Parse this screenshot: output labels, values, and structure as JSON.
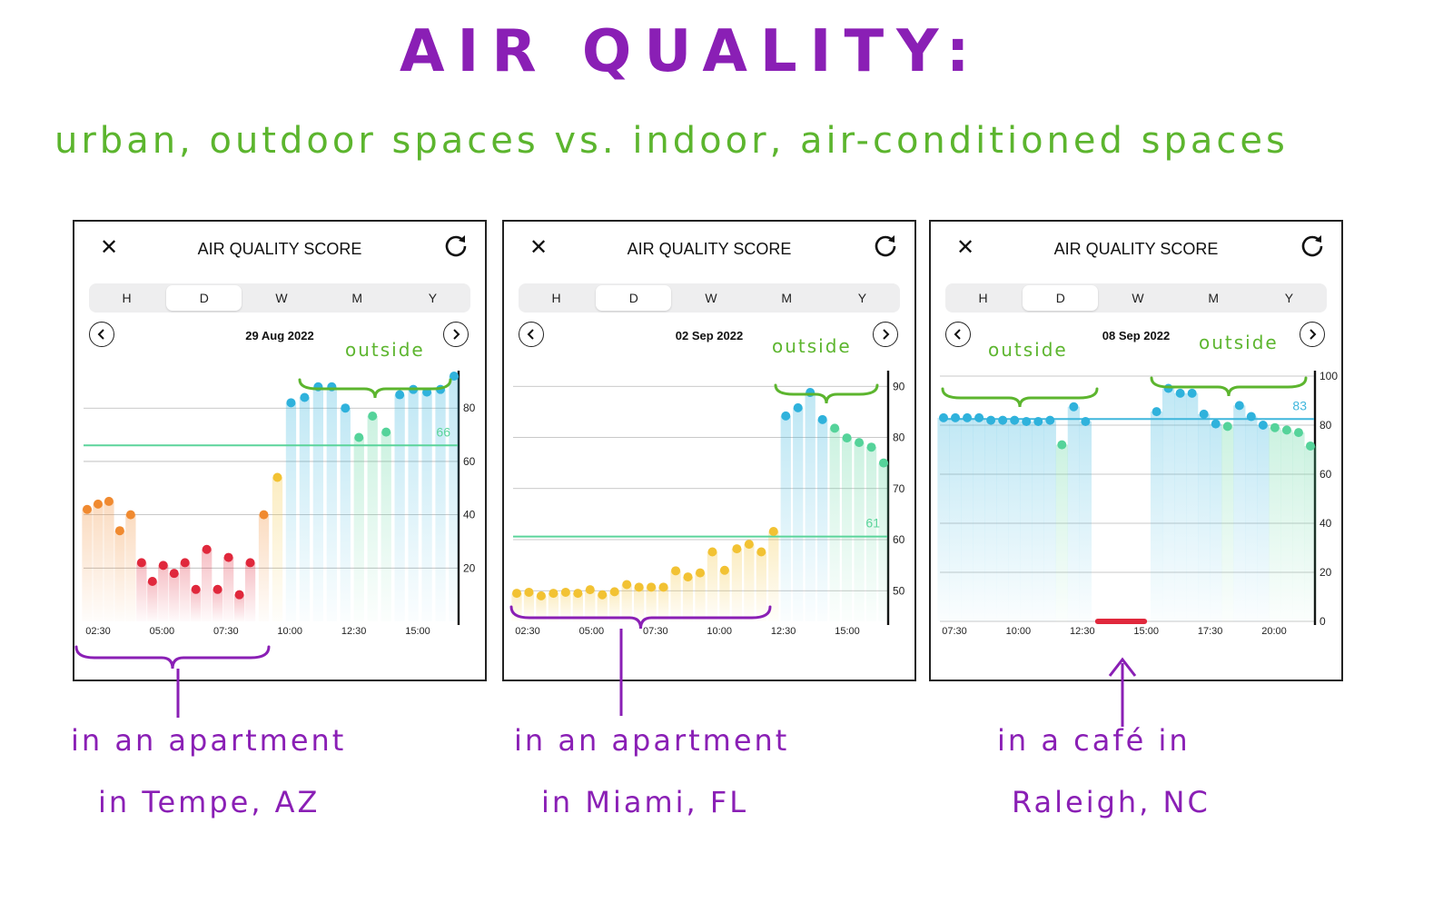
{
  "title": "AIR QUALITY:",
  "subtitle": "urban, outdoor spaces vs. indoor, air-conditioned spaces",
  "panel_common": {
    "close_icon": "✕",
    "header_title": "AIR QUALITY SCORE",
    "segments": [
      "H",
      "D",
      "W",
      "M",
      "Y"
    ],
    "selected_segment": "D"
  },
  "colors": {
    "purple": "#8a1fb5",
    "green": "#5cb52e",
    "blue": "#2fb2dc",
    "teal": "#55d39a",
    "yellow": "#f2c233",
    "orange": "#f08a30",
    "red": "#e0283c"
  },
  "notes": [
    "in an apartment\nin Tempe, AZ",
    "in an apartment\nin Miami, FL",
    "in a café in\nRaleigh, NC"
  ],
  "outside_label": "outside",
  "chart_data": [
    {
      "type": "scatter",
      "date": "29 Aug 2022",
      "x_ticks": [
        "02:30",
        "05:00",
        "07:30",
        "10:00",
        "12:30",
        "15:00"
      ],
      "y_ticks": [
        20,
        40,
        60,
        80
      ],
      "ylim": [
        0,
        92
      ],
      "average": 66,
      "average_label": "66",
      "points": [
        [
          0,
          42
        ],
        [
          0.4,
          44
        ],
        [
          0.8,
          45
        ],
        [
          1.2,
          34
        ],
        [
          1.6,
          40
        ],
        [
          2.0,
          22
        ],
        [
          2.4,
          15
        ],
        [
          2.8,
          21
        ],
        [
          3.2,
          18
        ],
        [
          3.6,
          22
        ],
        [
          4.0,
          12
        ],
        [
          4.4,
          27
        ],
        [
          4.8,
          12
        ],
        [
          5.2,
          24
        ],
        [
          5.6,
          10
        ],
        [
          6.0,
          22
        ],
        [
          6.5,
          40
        ],
        [
          7.0,
          54
        ],
        [
          7.5,
          82
        ],
        [
          8.0,
          84
        ],
        [
          8.5,
          88
        ],
        [
          9.0,
          88
        ],
        [
          9.5,
          80
        ],
        [
          10.0,
          69
        ],
        [
          10.5,
          77
        ],
        [
          11.0,
          71
        ],
        [
          11.5,
          85
        ],
        [
          12.0,
          87
        ],
        [
          12.5,
          86
        ],
        [
          13.0,
          87
        ],
        [
          13.5,
          92
        ]
      ]
    },
    {
      "type": "scatter",
      "date": "02 Sep 2022",
      "x_ticks": [
        "02:30",
        "05:00",
        "07:30",
        "10:00",
        "12:30",
        "15:00"
      ],
      "y_ticks": [
        50,
        60,
        70,
        80,
        90
      ],
      "ylim": [
        44,
        92
      ],
      "average": 60.6,
      "average_label": "61",
      "points": [
        [
          0,
          49.5
        ],
        [
          0.5,
          49.7
        ],
        [
          1.0,
          49
        ],
        [
          1.5,
          49.5
        ],
        [
          2.0,
          49.7
        ],
        [
          2.5,
          49.5
        ],
        [
          3.0,
          50.2
        ],
        [
          3.5,
          49.2
        ],
        [
          4.0,
          49.8
        ],
        [
          4.5,
          51.2
        ],
        [
          5.0,
          50.7
        ],
        [
          5.5,
          50.7
        ],
        [
          6.0,
          50.7
        ],
        [
          6.5,
          53.9
        ],
        [
          7.0,
          52.7
        ],
        [
          7.5,
          53.5
        ],
        [
          8.0,
          57.6
        ],
        [
          8.5,
          54
        ],
        [
          9.0,
          58.2
        ],
        [
          9.5,
          59.1
        ],
        [
          10.0,
          57.6
        ],
        [
          10.5,
          61.6
        ],
        [
          11.0,
          84.2
        ],
        [
          11.5,
          85.8
        ],
        [
          12.0,
          88.8
        ],
        [
          12.5,
          83.5
        ],
        [
          13.0,
          81.8
        ],
        [
          13.5,
          79.9
        ],
        [
          14.0,
          79
        ],
        [
          14.5,
          78.1
        ],
        [
          15.0,
          75
        ]
      ]
    },
    {
      "type": "scatter",
      "date": "08 Sep 2022",
      "x_ticks": [
        "07:30",
        "10:00",
        "12:30",
        "15:00",
        "17:30",
        "20:00"
      ],
      "y_ticks": [
        0,
        20,
        40,
        60,
        80,
        100
      ],
      "ylim": [
        0,
        100
      ],
      "average": 82.5,
      "average_label": "83",
      "points": [
        [
          0,
          83
        ],
        [
          0.5,
          83
        ],
        [
          1.0,
          83
        ],
        [
          1.5,
          83
        ],
        [
          2.0,
          82
        ],
        [
          2.5,
          82
        ],
        [
          3.0,
          82
        ],
        [
          3.5,
          81.5
        ],
        [
          4.0,
          81.5
        ],
        [
          4.5,
          82
        ],
        [
          5.0,
          72
        ],
        [
          5.5,
          87.5
        ],
        [
          6.0,
          81.5
        ],
        [
          9.0,
          85.5
        ],
        [
          9.5,
          95
        ],
        [
          10.0,
          93
        ],
        [
          10.5,
          93
        ],
        [
          11.0,
          84.5
        ],
        [
          11.5,
          80.5
        ],
        [
          12.0,
          79.5
        ],
        [
          12.5,
          88
        ],
        [
          13.0,
          83.5
        ],
        [
          13.5,
          80
        ],
        [
          14.0,
          79
        ],
        [
          14.5,
          78
        ],
        [
          15.0,
          77
        ],
        [
          15.5,
          71.5
        ]
      ],
      "offline_segment": [
        6.4,
        8.6
      ]
    }
  ]
}
